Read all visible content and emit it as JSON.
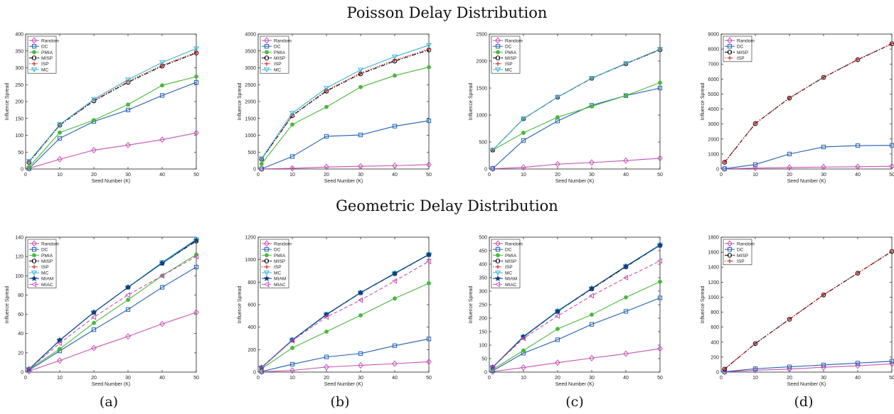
{
  "row_titles": [
    "Poisson Delay Distribution",
    "Geometric Delay Distribution"
  ],
  "captions": [
    "(a)",
    "(b)",
    "(c)",
    "(d)"
  ],
  "series_styles": {
    "Random": {
      "color": "#c652b3",
      "marker": "diamond",
      "dash": "solid"
    },
    "DC": {
      "color": "#1f5fb1",
      "marker": "square",
      "dash": "solid"
    },
    "PMIA": {
      "color": "#49b83a",
      "marker": "dot",
      "dash": "solid"
    },
    "MISP": {
      "color": "#000000",
      "marker": "circle",
      "dash": "dashdot"
    },
    "ISP": {
      "color": "#d62020",
      "marker": "plus",
      "dash": "dotted"
    },
    "MC": {
      "color": "#3cb6d6",
      "marker": "triangle-down",
      "dash": "solid"
    },
    "MIAM": {
      "color": "#0c3f86",
      "marker": "star",
      "dash": "solid"
    },
    "MIAC": {
      "color": "#c652b3",
      "marker": "triangle-left",
      "dash": "dashed"
    }
  },
  "chart_data": [
    {
      "type": "line",
      "row": 0,
      "col": 0,
      "xlabel": "Seed Number (K)",
      "ylabel": "Influence Spread",
      "xlim": [
        0,
        50
      ],
      "ylim": [
        0,
        400
      ],
      "xticks": [
        0,
        10,
        20,
        30,
        40,
        50
      ],
      "yticks": [
        0,
        50,
        100,
        150,
        200,
        250,
        300,
        350,
        400
      ],
      "legend": "top-left",
      "x": [
        1,
        10,
        20,
        30,
        40,
        50
      ],
      "series": [
        {
          "name": "Random",
          "values": [
            2,
            29,
            56,
            71,
            87,
            107
          ]
        },
        {
          "name": "DC",
          "values": [
            1,
            91,
            141,
            175,
            218,
            257
          ]
        },
        {
          "name": "PMIA",
          "values": [
            6,
            108,
            145,
            191,
            248,
            274
          ]
        },
        {
          "name": "MISP",
          "values": [
            20,
            130,
            202,
            257,
            305,
            344
          ]
        },
        {
          "name": "ISP",
          "values": [
            21,
            131,
            204,
            260,
            308,
            346
          ]
        },
        {
          "name": "MC",
          "values": [
            23,
            132,
            207,
            265,
            316,
            357
          ]
        }
      ]
    },
    {
      "type": "line",
      "row": 0,
      "col": 1,
      "xlabel": "Seed Number (K)",
      "ylabel": "Influence Spread",
      "xlim": [
        0,
        50
      ],
      "ylim": [
        0,
        4000
      ],
      "xticks": [
        0,
        10,
        20,
        30,
        40,
        50
      ],
      "yticks": [
        0,
        500,
        1000,
        1500,
        2000,
        2500,
        3000,
        3500,
        4000
      ],
      "legend": "top-left",
      "x": [
        1,
        10,
        20,
        30,
        40,
        50
      ],
      "series": [
        {
          "name": "Random",
          "values": [
            5,
            20,
            60,
            80,
            100,
            130
          ]
        },
        {
          "name": "DC",
          "values": [
            5,
            370,
            970,
            1010,
            1270,
            1430
          ]
        },
        {
          "name": "PMIA",
          "values": [
            150,
            1320,
            1840,
            2430,
            2770,
            3020
          ]
        },
        {
          "name": "MISP",
          "values": [
            290,
            1580,
            2310,
            2820,
            3200,
            3530
          ]
        },
        {
          "name": "ISP",
          "values": [
            295,
            1600,
            2330,
            2850,
            3230,
            3560
          ]
        },
        {
          "name": "MC",
          "values": [
            310,
            1660,
            2400,
            2940,
            3330,
            3670
          ]
        }
      ]
    },
    {
      "type": "line",
      "row": 0,
      "col": 2,
      "xlabel": "Seed Number (K)",
      "ylabel": "Influence Spread",
      "xlim": [
        0,
        50
      ],
      "ylim": [
        0,
        2500
      ],
      "xticks": [
        0,
        10,
        20,
        30,
        40,
        50
      ],
      "yticks": [
        0,
        500,
        1000,
        1500,
        2000,
        2500
      ],
      "legend": "top-left",
      "x": [
        1,
        10,
        20,
        30,
        40,
        50
      ],
      "series": [
        {
          "name": "Random",
          "values": [
            5,
            30,
            90,
            120,
            155,
            200
          ]
        },
        {
          "name": "DC",
          "values": [
            10,
            530,
            890,
            1180,
            1360,
            1500
          ]
        },
        {
          "name": "PMIA",
          "values": [
            350,
            670,
            960,
            1160,
            1360,
            1600
          ]
        },
        {
          "name": "MISP",
          "values": [
            350,
            930,
            1330,
            1680,
            1950,
            2210
          ]
        },
        {
          "name": "ISP",
          "values": [
            350,
            932,
            1332,
            1682,
            1952,
            2212
          ]
        },
        {
          "name": "MC",
          "values": [
            352,
            935,
            1335,
            1685,
            1958,
            2220
          ]
        }
      ]
    },
    {
      "type": "line",
      "row": 0,
      "col": 3,
      "xlabel": "Seed Number (K)",
      "ylabel": "Influence Spread",
      "xlim": [
        0,
        50
      ],
      "ylim": [
        0,
        9000
      ],
      "xticks": [
        0,
        10,
        20,
        30,
        40,
        50
      ],
      "yticks": [
        0,
        1000,
        2000,
        3000,
        4000,
        5000,
        6000,
        7000,
        8000,
        9000
      ],
      "legend": "top-left",
      "x": [
        1,
        10,
        20,
        30,
        40,
        50
      ],
      "series": [
        {
          "name": "Random",
          "values": [
            10,
            60,
            100,
            130,
            150,
            180
          ]
        },
        {
          "name": "DC",
          "values": [
            20,
            300,
            1000,
            1470,
            1560,
            1580
          ]
        },
        {
          "name": "MISP",
          "values": [
            450,
            3030,
            4730,
            6110,
            7290,
            8350
          ]
        },
        {
          "name": "ISP",
          "values": [
            460,
            3050,
            4750,
            6130,
            7310,
            8370
          ]
        }
      ]
    },
    {
      "type": "line",
      "row": 1,
      "col": 0,
      "xlabel": "Seed Number (K)",
      "ylabel": "Influence Spread",
      "xlim": [
        0,
        50
      ],
      "ylim": [
        0,
        140
      ],
      "xticks": [
        0,
        10,
        20,
        30,
        40,
        50
      ],
      "yticks": [
        0,
        20,
        40,
        60,
        80,
        100,
        120,
        140
      ],
      "legend": "top-left",
      "x": [
        1,
        10,
        20,
        30,
        40,
        50
      ],
      "series": [
        {
          "name": "Random",
          "values": [
            1,
            12,
            25,
            37,
            50,
            62
          ]
        },
        {
          "name": "DC",
          "values": [
            2,
            22,
            44,
            65,
            88,
            109
          ]
        },
        {
          "name": "PMIA",
          "values": [
            3,
            24,
            51,
            75,
            100,
            122
          ]
        },
        {
          "name": "MISP",
          "values": [
            3,
            33,
            62,
            88,
            113,
            136
          ]
        },
        {
          "name": "ISP",
          "values": [
            3,
            33,
            62,
            88,
            113,
            137
          ]
        },
        {
          "name": "MC",
          "values": [
            3,
            33,
            62,
            88,
            114,
            138
          ]
        },
        {
          "name": "MIAM",
          "values": [
            3,
            33,
            62,
            88,
            113,
            137
          ]
        },
        {
          "name": "MIAC",
          "values": [
            3,
            30,
            57,
            80,
            100,
            120
          ]
        }
      ]
    },
    {
      "type": "line",
      "row": 1,
      "col": 1,
      "xlabel": "Seed Number (K)",
      "ylabel": "Influence Spread",
      "xlim": [
        0,
        50
      ],
      "ylim": [
        0,
        1200
      ],
      "xticks": [
        0,
        10,
        20,
        30,
        40,
        50
      ],
      "yticks": [
        0,
        200,
        400,
        600,
        800,
        1000,
        1200
      ],
      "legend": "top-left",
      "x": [
        1,
        10,
        20,
        30,
        40,
        50
      ],
      "series": [
        {
          "name": "Random",
          "values": [
            3,
            15,
            45,
            60,
            75,
            92
          ]
        },
        {
          "name": "DC",
          "values": [
            5,
            70,
            135,
            165,
            235,
            295
          ]
        },
        {
          "name": "PMIA",
          "values": [
            30,
            215,
            360,
            505,
            655,
            790
          ]
        },
        {
          "name": "MISP",
          "values": [
            40,
            285,
            510,
            705,
            875,
            1045
          ]
        },
        {
          "name": "ISP",
          "values": [
            40,
            286,
            512,
            707,
            877,
            1047
          ]
        },
        {
          "name": "MC",
          "values": [
            40,
            288,
            515,
            708,
            880,
            1048
          ]
        },
        {
          "name": "MIAM",
          "values": [
            40,
            285,
            512,
            706,
            877,
            1045
          ]
        },
        {
          "name": "MIAC",
          "values": [
            38,
            280,
            490,
            640,
            810,
            985
          ]
        }
      ]
    },
    {
      "type": "line",
      "row": 1,
      "col": 2,
      "xlabel": "Seed Number (K)",
      "ylabel": "Influence Spread",
      "xlim": [
        0,
        50
      ],
      "ylim": [
        0,
        500
      ],
      "xticks": [
        0,
        10,
        20,
        30,
        40,
        50
      ],
      "yticks": [
        0,
        50,
        100,
        150,
        200,
        250,
        300,
        350,
        400,
        450,
        500
      ],
      "legend": "top-left",
      "x": [
        1,
        10,
        20,
        30,
        40,
        50
      ],
      "series": [
        {
          "name": "Random",
          "values": [
            2,
            17,
            35,
            52,
            68,
            87
          ]
        },
        {
          "name": "DC",
          "values": [
            5,
            70,
            120,
            177,
            225,
            275
          ]
        },
        {
          "name": "PMIA",
          "values": [
            10,
            80,
            160,
            213,
            277,
            335
          ]
        },
        {
          "name": "MISP",
          "values": [
            18,
            130,
            225,
            308,
            390,
            470
          ]
        },
        {
          "name": "ISP",
          "values": [
            18,
            131,
            226,
            309,
            391,
            471
          ]
        },
        {
          "name": "MC",
          "values": [
            18,
            132,
            227,
            310,
            393,
            472
          ]
        },
        {
          "name": "MIAM",
          "values": [
            18,
            131,
            225,
            310,
            392,
            470
          ]
        },
        {
          "name": "MIAC",
          "values": [
            18,
            125,
            208,
            283,
            350,
            412
          ]
        }
      ]
    },
    {
      "type": "line",
      "row": 1,
      "col": 3,
      "xlabel": "Seed Number (K)",
      "ylabel": "Influence Spread",
      "xlim": [
        0,
        50
      ],
      "ylim": [
        0,
        1800
      ],
      "xticks": [
        0,
        10,
        20,
        30,
        40,
        50
      ],
      "yticks": [
        0,
        200,
        400,
        600,
        800,
        1000,
        1200,
        1400,
        1600,
        1800
      ],
      "legend": "top-left",
      "x": [
        1,
        10,
        20,
        30,
        40,
        50
      ],
      "series": [
        {
          "name": "Random",
          "values": [
            2,
            25,
            40,
            65,
            85,
            110
          ]
        },
        {
          "name": "DC",
          "values": [
            5,
            45,
            70,
            95,
            120,
            145
          ]
        },
        {
          "name": "MISP",
          "values": [
            40,
            380,
            705,
            1030,
            1320,
            1610
          ]
        },
        {
          "name": "ISP",
          "values": [
            42,
            383,
            708,
            1033,
            1323,
            1613
          ]
        }
      ]
    }
  ]
}
